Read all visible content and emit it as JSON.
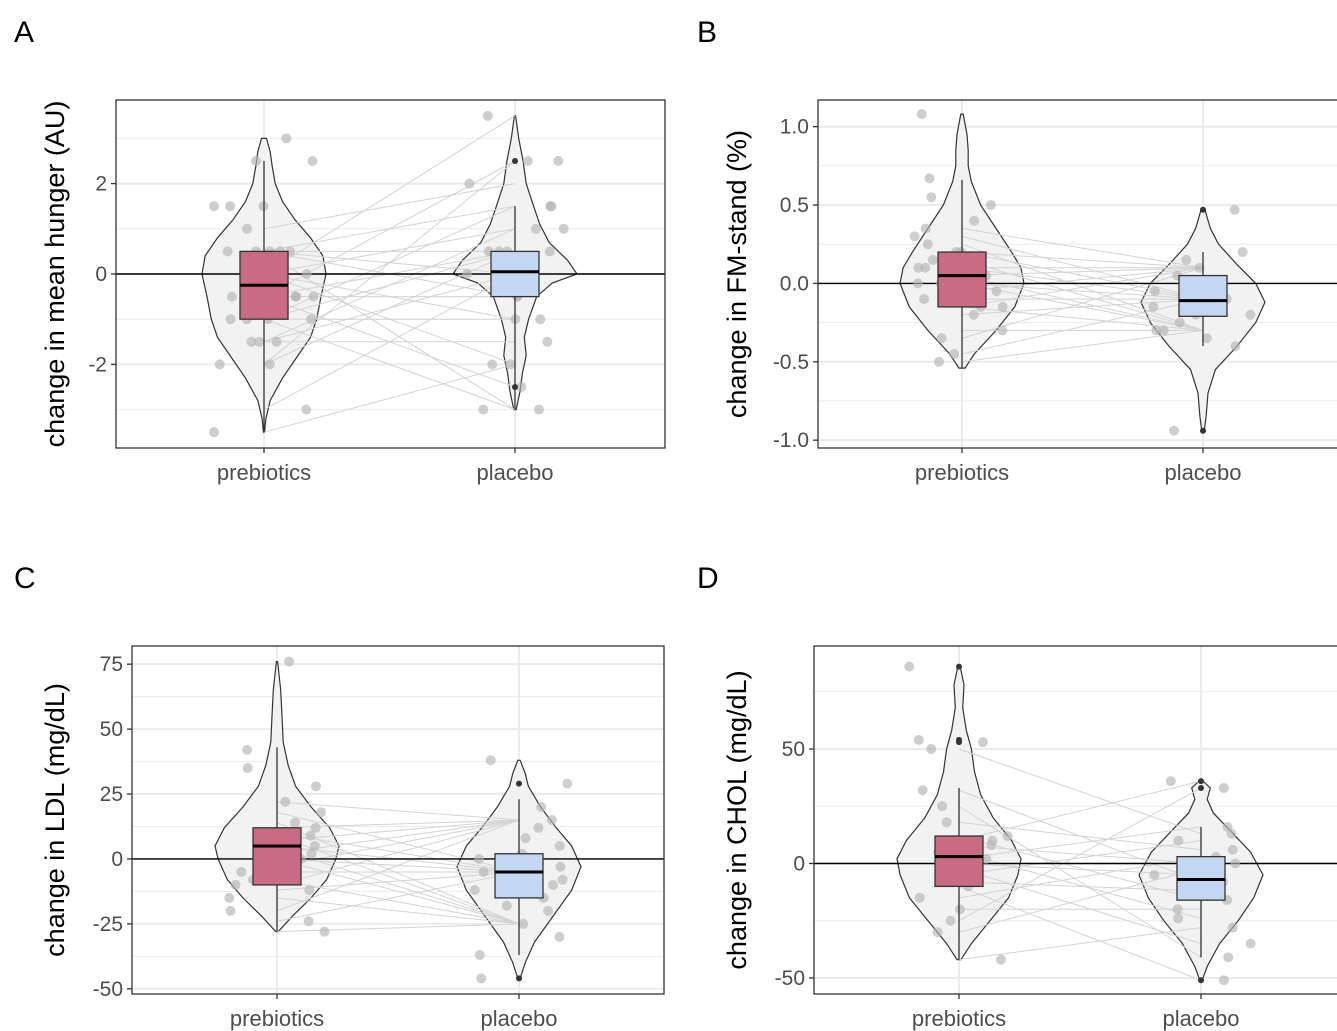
{
  "chart_data": [
    {
      "panel": "A",
      "type": "violin",
      "ylabel": "change in mean hunger (AU)",
      "categories": [
        "prebiotics",
        "placebo"
      ],
      "yticks": [
        {
          "v": 2,
          "label": "2"
        },
        {
          "v": 0,
          "label": "0"
        },
        {
          "v": -2,
          "label": "-2"
        }
      ],
      "ylim": [
        -3.85,
        3.85
      ],
      "grid": true,
      "hline": 0,
      "colors": {
        "prebiotics": "#c96b85",
        "placebo": "#c3d7f2"
      },
      "groups": [
        {
          "name": "prebiotics",
          "min": -3.5,
          "max": 3.0,
          "q1": -1.0,
          "median": -0.25,
          "q3": 0.5,
          "wlo": -3.5,
          "whi": 2.5,
          "density": [
            [
              -3.5,
              0.01
            ],
            [
              -3.2,
              0.03
            ],
            [
              -2.8,
              0.1
            ],
            [
              -2.3,
              0.3
            ],
            [
              -1.8,
              0.55
            ],
            [
              -1.4,
              0.75
            ],
            [
              -1.0,
              0.85
            ],
            [
              -0.5,
              0.92
            ],
            [
              0.0,
              1.0
            ],
            [
              0.4,
              0.95
            ],
            [
              0.8,
              0.75
            ],
            [
              1.2,
              0.5
            ],
            [
              1.6,
              0.3
            ],
            [
              2.0,
              0.18
            ],
            [
              2.4,
              0.13
            ],
            [
              2.7,
              0.1
            ],
            [
              3.0,
              0.04
            ]
          ],
          "points": [
            -3.5,
            -3.0,
            -2.0,
            -2.0,
            -1.5,
            -1.5,
            -1.5,
            -1.0,
            -1.0,
            -1.0,
            -1.0,
            -0.5,
            -0.5,
            -0.5,
            -0.5,
            0.0,
            0.0,
            0.0,
            0.0,
            0.0,
            0.5,
            0.5,
            0.5,
            0.5,
            0.5,
            1.0,
            1.5,
            1.5,
            1.5,
            2.5,
            2.5,
            3.0
          ],
          "outliers": []
        },
        {
          "name": "placebo",
          "min": -3.0,
          "max": 3.5,
          "q1": -0.5,
          "median": 0.05,
          "q3": 0.5,
          "wlo": -3.0,
          "whi": 1.5,
          "density": [
            [
              -3.0,
              0.02
            ],
            [
              -2.6,
              0.08
            ],
            [
              -2.2,
              0.12
            ],
            [
              -1.8,
              0.18
            ],
            [
              -1.4,
              0.15
            ],
            [
              -1.0,
              0.22
            ],
            [
              -0.5,
              0.35
            ],
            [
              -0.2,
              0.6
            ],
            [
              0.0,
              1.0
            ],
            [
              0.3,
              0.85
            ],
            [
              0.7,
              0.55
            ],
            [
              1.1,
              0.4
            ],
            [
              1.5,
              0.3
            ],
            [
              2.0,
              0.18
            ],
            [
              2.5,
              0.13
            ],
            [
              3.0,
              0.06
            ],
            [
              3.5,
              0.01
            ]
          ],
          "points": [
            -3.0,
            -3.0,
            -2.5,
            -2.0,
            -2.0,
            -1.5,
            -1.0,
            -1.0,
            -0.5,
            -0.5,
            0.0,
            0.0,
            0.0,
            0.0,
            0.5,
            0.5,
            0.5,
            0.5,
            1.0,
            1.0,
            1.5,
            1.5,
            2.0,
            2.5,
            2.5,
            3.5
          ],
          "outliers": [
            2.5,
            -2.5
          ]
        }
      ]
    },
    {
      "panel": "B",
      "type": "violin",
      "ylabel": "change in FM-stand (%)",
      "categories": [
        "prebiotics",
        "placebo"
      ],
      "yticks": [
        {
          "v": 1.0,
          "label": "1.0"
        },
        {
          "v": 0.5,
          "label": "0.5"
        },
        {
          "v": 0.0,
          "label": "0.0"
        },
        {
          "v": -0.5,
          "label": "-0.5"
        },
        {
          "v": -1.0,
          "label": "-1.0"
        }
      ],
      "ylim": [
        -1.05,
        1.17
      ],
      "grid": true,
      "hline": 0,
      "colors": {
        "prebiotics": "#c96b85",
        "placebo": "#c3d7f2"
      },
      "groups": [
        {
          "name": "prebiotics",
          "min": -0.54,
          "max": 1.08,
          "q1": -0.15,
          "median": 0.05,
          "q3": 0.2,
          "wlo": -0.54,
          "whi": 0.66,
          "density": [
            [
              -0.54,
              0.05
            ],
            [
              -0.45,
              0.2
            ],
            [
              -0.3,
              0.55
            ],
            [
              -0.15,
              0.85
            ],
            [
              0.0,
              1.0
            ],
            [
              0.1,
              0.95
            ],
            [
              0.2,
              0.8
            ],
            [
              0.35,
              0.55
            ],
            [
              0.5,
              0.3
            ],
            [
              0.65,
              0.15
            ],
            [
              0.75,
              0.1
            ],
            [
              0.85,
              0.1
            ],
            [
              0.95,
              0.08
            ],
            [
              1.08,
              0.02
            ]
          ],
          "points": [
            -0.5,
            -0.45,
            -0.35,
            -0.3,
            -0.2,
            -0.15,
            -0.15,
            -0.1,
            -0.05,
            0.0,
            0.0,
            0.05,
            0.05,
            0.1,
            0.1,
            0.15,
            0.2,
            0.2,
            0.25,
            0.3,
            0.35,
            0.4,
            0.5,
            0.55,
            0.67,
            1.08
          ],
          "outliers": []
        },
        {
          "name": "placebo",
          "min": -0.94,
          "max": 0.47,
          "q1": -0.21,
          "median": -0.11,
          "q3": 0.05,
          "wlo": -0.4,
          "whi": 0.2,
          "density": [
            [
              -0.94,
              0.02
            ],
            [
              -0.85,
              0.05
            ],
            [
              -0.7,
              0.08
            ],
            [
              -0.55,
              0.2
            ],
            [
              -0.4,
              0.55
            ],
            [
              -0.25,
              0.85
            ],
            [
              -0.12,
              1.0
            ],
            [
              0.0,
              0.85
            ],
            [
              0.12,
              0.55
            ],
            [
              0.25,
              0.25
            ],
            [
              0.35,
              0.12
            ],
            [
              0.47,
              0.03
            ]
          ],
          "points": [
            -0.94,
            -0.4,
            -0.35,
            -0.3,
            -0.3,
            -0.25,
            -0.2,
            -0.2,
            -0.15,
            -0.15,
            -0.1,
            -0.1,
            -0.05,
            -0.05,
            0.0,
            0.0,
            0.05,
            0.1,
            0.15,
            0.2,
            0.47
          ],
          "outliers": [
            0.47,
            -0.94
          ]
        }
      ]
    },
    {
      "panel": "C",
      "type": "violin",
      "ylabel": "change in LDL (mg/dL)",
      "categories": [
        "prebiotics",
        "placebo"
      ],
      "yticks": [
        {
          "v": 75,
          "label": "75"
        },
        {
          "v": 50,
          "label": "50"
        },
        {
          "v": 25,
          "label": "25"
        },
        {
          "v": 0,
          "label": "0"
        },
        {
          "v": -25,
          "label": "-25"
        },
        {
          "v": -50,
          "label": "-50"
        }
      ],
      "ylim": [
        -52,
        82
      ],
      "grid": true,
      "hline": 0,
      "colors": {
        "prebiotics": "#c96b85",
        "placebo": "#c3d7f2"
      },
      "groups": [
        {
          "name": "prebiotics",
          "min": -28,
          "max": 76,
          "q1": -10,
          "median": 5,
          "q3": 12,
          "wlo": -28,
          "whi": 43,
          "density": [
            [
              -28,
              0.02
            ],
            [
              -22,
              0.25
            ],
            [
              -15,
              0.55
            ],
            [
              -8,
              0.8
            ],
            [
              0,
              0.95
            ],
            [
              5,
              1.0
            ],
            [
              12,
              0.85
            ],
            [
              20,
              0.55
            ],
            [
              28,
              0.3
            ],
            [
              36,
              0.18
            ],
            [
              45,
              0.1
            ],
            [
              55,
              0.08
            ],
            [
              65,
              0.06
            ],
            [
              76,
              0.01
            ]
          ],
          "points": [
            -28,
            -24,
            -20,
            -15,
            -12,
            -10,
            -8,
            -5,
            -3,
            0,
            0,
            2,
            4,
            5,
            7,
            9,
            10,
            12,
            14,
            18,
            22,
            28,
            35,
            42,
            76
          ],
          "outliers": []
        },
        {
          "name": "placebo",
          "min": -46,
          "max": 38,
          "q1": -15,
          "median": -5,
          "q3": 2,
          "wlo": -37,
          "whi": 23,
          "density": [
            [
              -46,
              0.02
            ],
            [
              -40,
              0.1
            ],
            [
              -32,
              0.25
            ],
            [
              -22,
              0.55
            ],
            [
              -12,
              0.85
            ],
            [
              -3,
              1.0
            ],
            [
              5,
              0.85
            ],
            [
              12,
              0.6
            ],
            [
              20,
              0.35
            ],
            [
              28,
              0.15
            ],
            [
              33,
              0.1
            ],
            [
              38,
              0.02
            ]
          ],
          "points": [
            -46,
            -37,
            -30,
            -25,
            -20,
            -18,
            -15,
            -12,
            -10,
            -8,
            -5,
            -3,
            0,
            2,
            5,
            8,
            12,
            15,
            20,
            29,
            38
          ],
          "outliers": [
            29,
            -46
          ]
        }
      ]
    },
    {
      "panel": "D",
      "type": "violin",
      "ylabel": "change in CHOL (mg/dL)",
      "categories": [
        "prebiotics",
        "placebo"
      ],
      "yticks": [
        {
          "v": 50,
          "label": "50"
        },
        {
          "v": 0,
          "label": "0"
        },
        {
          "v": -50,
          "label": "-50"
        }
      ],
      "ylim": [
        -57,
        95
      ],
      "grid": true,
      "hline": 0,
      "colors": {
        "prebiotics": "#c96b85",
        "placebo": "#c3d7f2"
      },
      "groups": [
        {
          "name": "prebiotics",
          "min": -42,
          "max": 86,
          "q1": -10,
          "median": 3,
          "q3": 12,
          "wlo": -42,
          "whi": 33,
          "density": [
            [
              -42,
              0.03
            ],
            [
              -35,
              0.2
            ],
            [
              -25,
              0.5
            ],
            [
              -15,
              0.8
            ],
            [
              -5,
              0.95
            ],
            [
              2,
              1.0
            ],
            [
              10,
              0.85
            ],
            [
              20,
              0.55
            ],
            [
              30,
              0.35
            ],
            [
              40,
              0.25
            ],
            [
              50,
              0.2
            ],
            [
              58,
              0.12
            ],
            [
              68,
              0.06
            ],
            [
              78,
              0.08
            ],
            [
              86,
              0.02
            ]
          ],
          "points": [
            -42,
            -30,
            -25,
            -20,
            -15,
            -10,
            -8,
            -5,
            -2,
            0,
            2,
            5,
            8,
            10,
            12,
            18,
            25,
            32,
            50,
            53,
            54,
            86
          ],
          "outliers": [
            53,
            54,
            86
          ]
        },
        {
          "name": "placebo",
          "min": -51,
          "max": 36,
          "q1": -16,
          "median": -7,
          "q3": 3,
          "wlo": -41,
          "whi": 16,
          "density": [
            [
              -51,
              0.02
            ],
            [
              -45,
              0.1
            ],
            [
              -35,
              0.3
            ],
            [
              -25,
              0.6
            ],
            [
              -15,
              0.85
            ],
            [
              -5,
              1.0
            ],
            [
              5,
              0.8
            ],
            [
              15,
              0.45
            ],
            [
              22,
              0.2
            ],
            [
              28,
              0.1
            ],
            [
              33,
              0.15
            ],
            [
              36,
              0.03
            ]
          ],
          "points": [
            -51,
            -41,
            -35,
            -28,
            -24,
            -20,
            -16,
            -12,
            -8,
            -5,
            -2,
            0,
            3,
            6,
            10,
            13,
            16,
            33,
            36
          ],
          "outliers": [
            33,
            36,
            -51
          ]
        }
      ]
    }
  ],
  "pairing": {
    "show_lines": true
  },
  "colors": {
    "violin_fill": "#f2f2f2",
    "grid": "#ebebeb",
    "point": "#b3b3b3",
    "pair_line": "#d3d3d3"
  }
}
